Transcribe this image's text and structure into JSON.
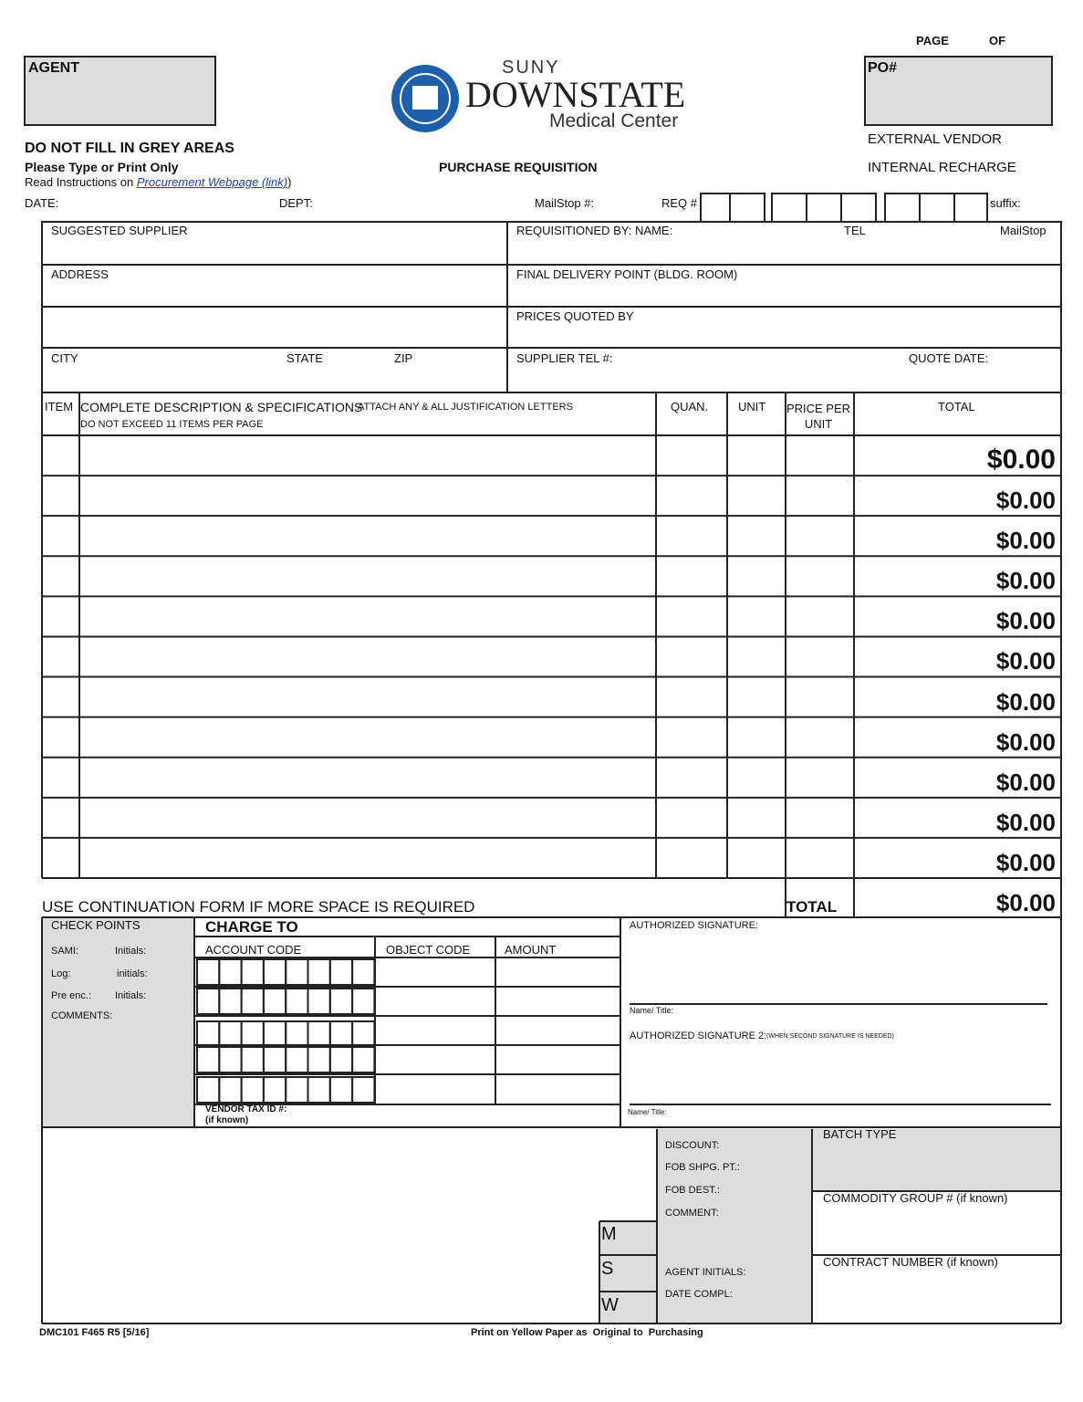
{
  "header": {
    "page_label": "PAGE",
    "of_label": "OF",
    "agent": "AGENT",
    "po": "PO#",
    "logo_suny": "SUNY",
    "logo_downstate": "DOWNSTATE",
    "logo_medical": "Medical Center",
    "external_vendor": "EXTERNAL VENDOR",
    "internal_recharge": "INTERNAL RECHARGE",
    "warning": "DO NOT FILL IN GREY AREAS",
    "type_print": "Please Type or Print Only",
    "instructions_prefix": "Read Instructions on",
    "instructions_link": "Procurement Webpage (link)",
    "instructions_suffix": ")",
    "title": "PURCHASE REQUISITION"
  },
  "fields": {
    "date": "DATE:",
    "dept": "DEPT:",
    "mailstop": "MailStop #:",
    "req": "REQ #",
    "suffix": "suffix:"
  },
  "supplier": {
    "suggested_supplier": "SUGGESTED SUPPLIER",
    "requisitioned_by": "REQUISITIONED BY: NAME:",
    "tel": "TEL",
    "mailstop": "MailStop",
    "address": "ADDRESS",
    "final_delivery": "FINAL DELIVERY POINT (BLDG. ROOM)",
    "prices_quoted": "PRICES QUOTED BY",
    "city": "CITY",
    "state": "STATE",
    "zip": "ZIP",
    "supplier_tel": "SUPPLIER TEL #:",
    "quote_date": "QUOTE DATE:"
  },
  "items": {
    "headers": {
      "item": "ITEM",
      "description": "COMPLETE DESCRIPTION & SPECIFICATIONS",
      "attach": "ATTACH ANY & ALL JUSTIFICATION LETTERS",
      "exceed": "DO NOT EXCEED 11 ITEMS PER PAGE",
      "quan": "QUAN.",
      "unit": "UNIT",
      "price": "PRICE PER UNIT",
      "total": "TOTAL"
    },
    "row_totals": [
      "$0.00",
      "$0.00",
      "$0.00",
      "$0.00",
      "$0.00",
      "$0.00",
      "$0.00",
      "$0.00",
      "$0.00",
      "$0.00",
      "$0.00"
    ],
    "continuation": "USE CONTINUATION FORM IF MORE SPACE IS REQUIRED",
    "total_label": "TOTAL",
    "grand_total": "$0.00"
  },
  "check_points": {
    "title": "CHECK POINTS",
    "sami": "SAMI:",
    "sami_initials": "Initials:",
    "log": "Log:",
    "log_initials": "initials:",
    "pre_enc": "Pre enc.:",
    "pre_enc_initials": "Initials:",
    "comments": "COMMENTS:"
  },
  "charge_to": {
    "title": "CHARGE TO",
    "account_code": "ACCOUNT CODE",
    "object_code": "OBJECT CODE",
    "amount": "AMOUNT",
    "vendor_tax": "VENDOR TAX ID #:",
    "if_known": "(if known)"
  },
  "signatures": {
    "authorized": "AUTHORIZED SIGNATURE:",
    "name_title": "Name/ Title:",
    "authorized_2": "AUTHORIZED SIGNATURE 2:",
    "authorized_2_note": "(WHEN SECOND SIGNATURE IS NEEDED)",
    "name_title_2": "Name/ Title:"
  },
  "office": {
    "discount": "DISCOUNT:",
    "fob_shpg": "FOB SHPG. PT.:",
    "fob_dest": "FOB DEST.:",
    "comment": "COMMENT:",
    "agent_initials": "AGENT INITIALS:",
    "date_compl": "DATE COMPL:",
    "m": "M",
    "s": "S",
    "w": "W",
    "batch_type": "BATCH TYPE",
    "commodity_group": "COMMODITY GROUP # (if known)",
    "contract_number": "CONTRACT NUMBER (if known)"
  },
  "footer": {
    "form_id": "DMC101 F465 R5 [5/16]",
    "print_note": "Print on Yellow Paper as  Original to  Purchasing"
  }
}
